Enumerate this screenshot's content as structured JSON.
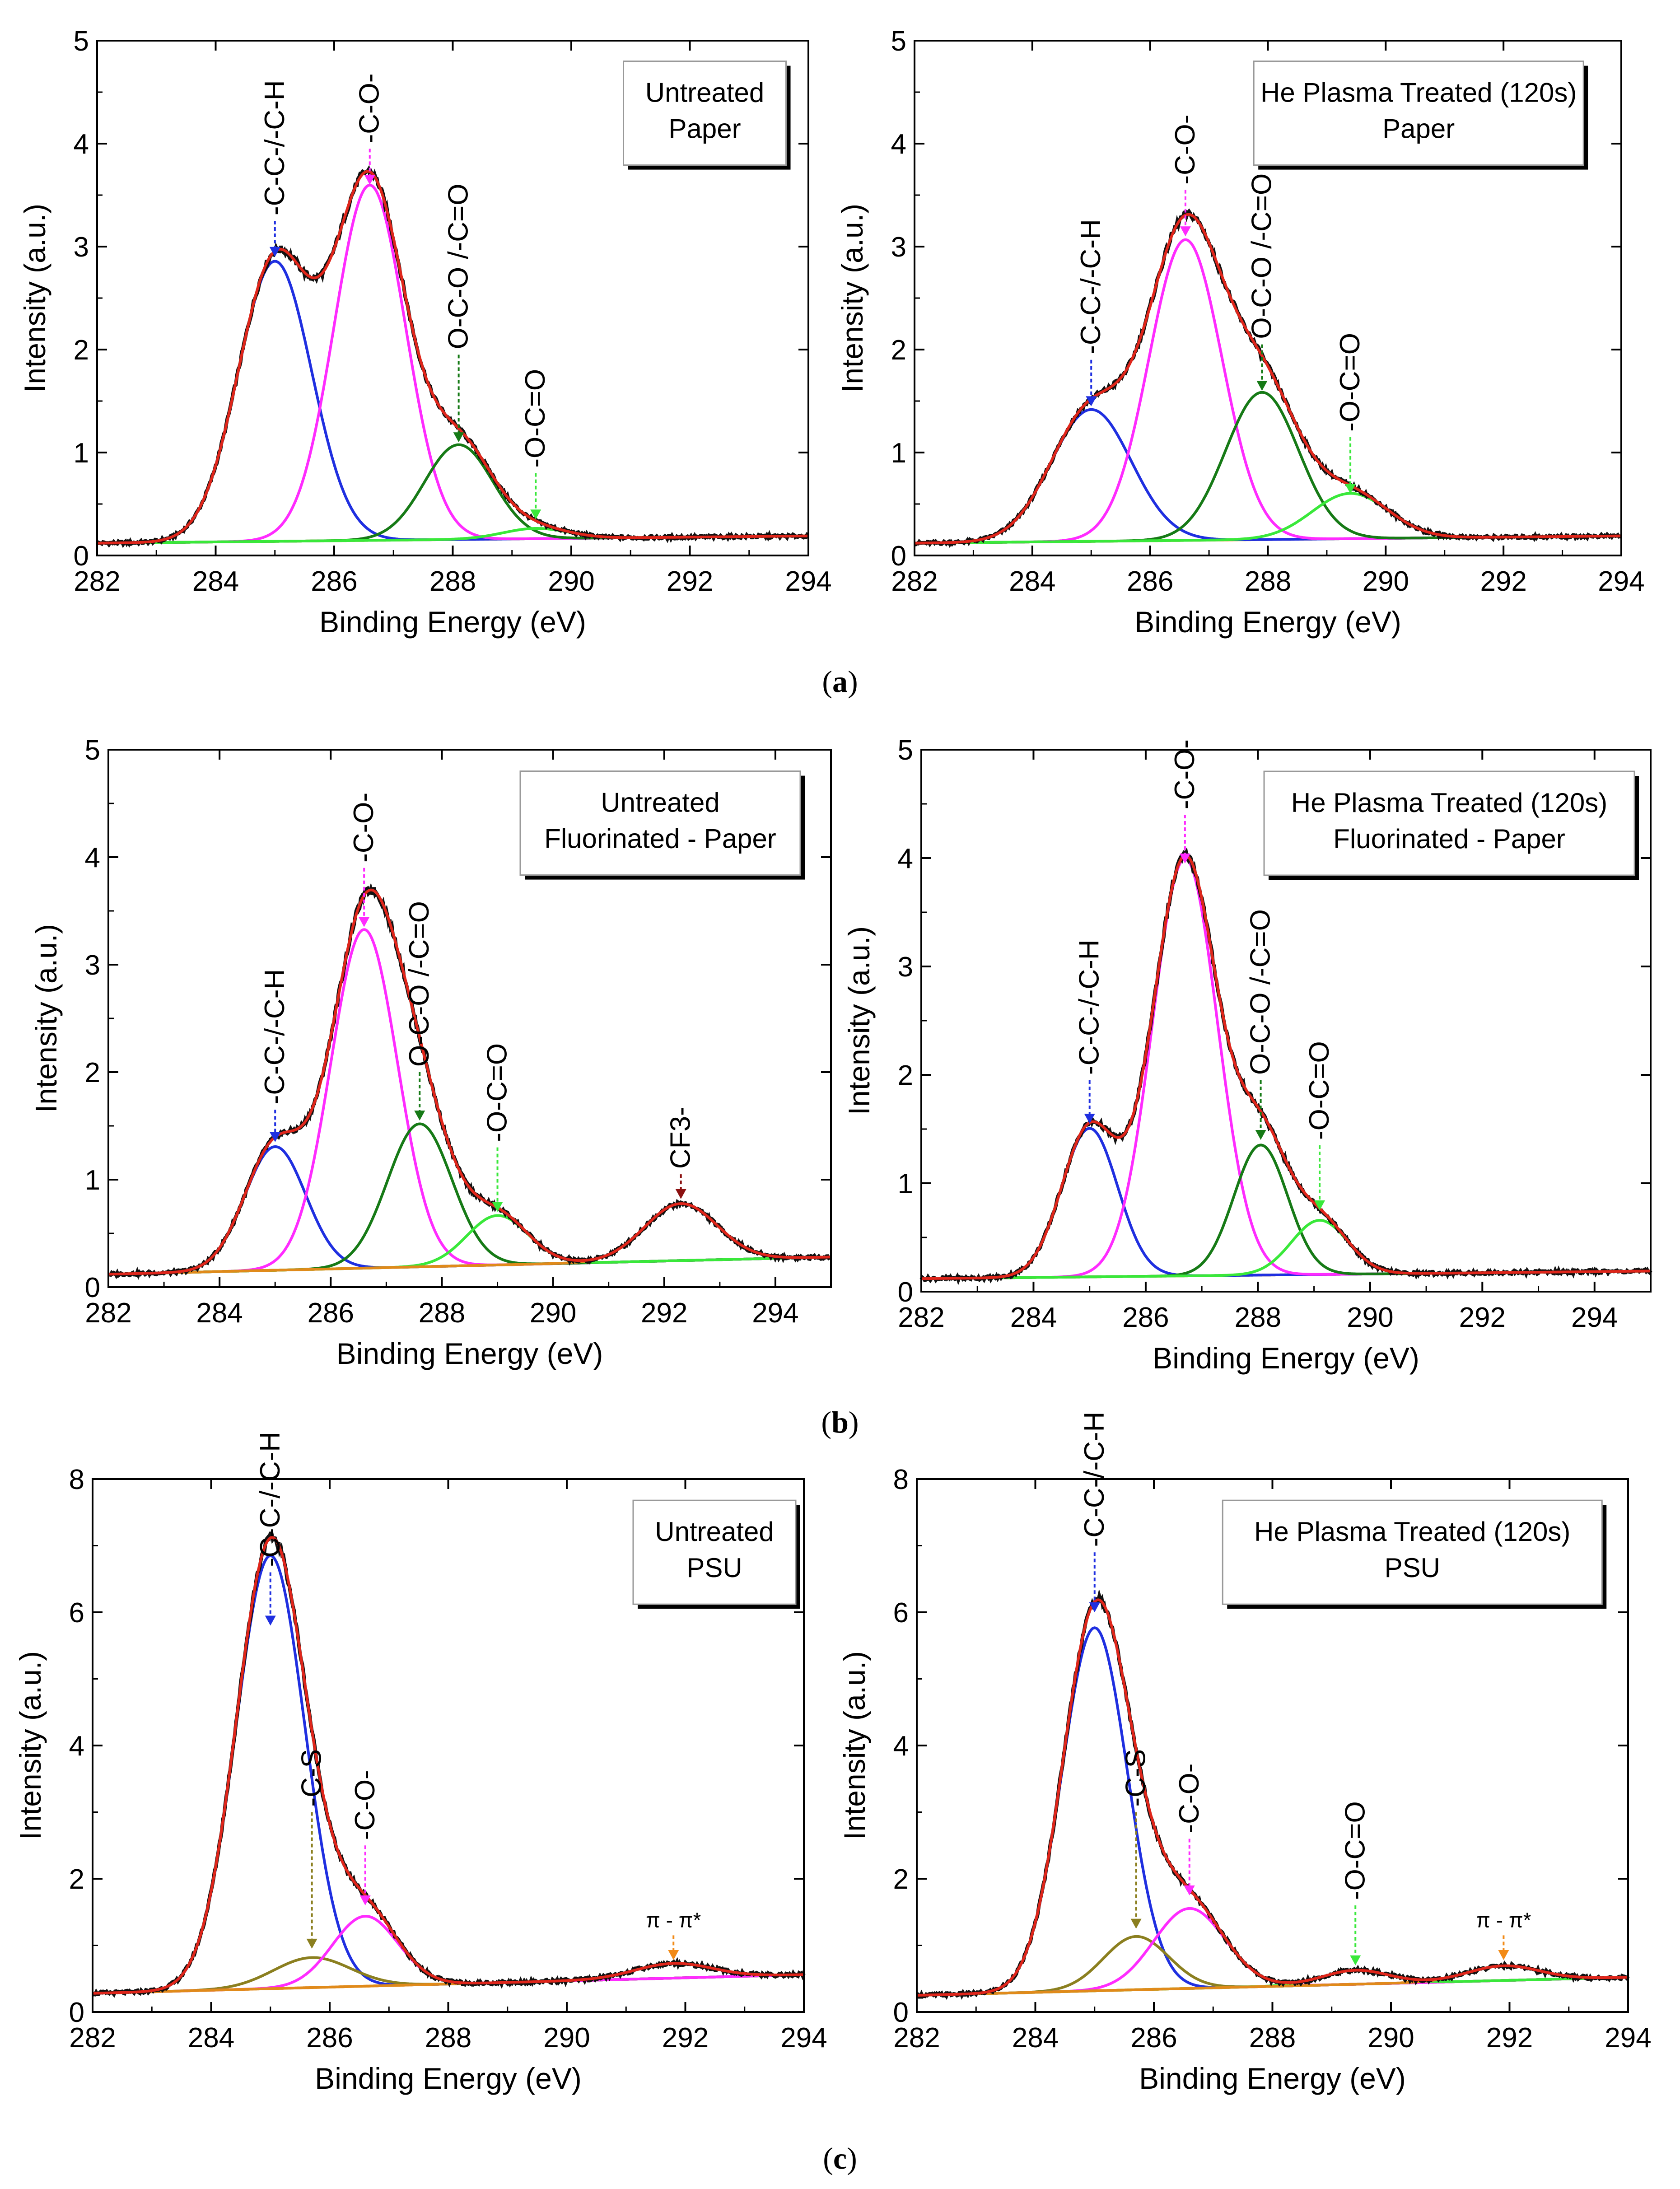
{
  "colors": {
    "data": "#111111",
    "envelope": "#e0261b",
    "cc": "#1f2fe0",
    "co": "#ff2bff",
    "oco": "#167a16",
    "occ": "#39e83a",
    "bg": "#e08a1a",
    "cs": "#8b7f1f",
    "cf3": "#8b1010",
    "pi": "#f28a16"
  },
  "captions": [
    {
      "open": "(",
      "letter": "a",
      "close": ")"
    },
    {
      "open": "(",
      "letter": "b",
      "close": ")"
    },
    {
      "open": "(",
      "letter": "c",
      "close": ")"
    }
  ],
  "chart_data": [
    {
      "type": "line",
      "id": "a-left",
      "title": "",
      "legend": [
        "Untreated",
        "Paper"
      ],
      "xlabel": "Binding Energy (eV)",
      "ylabel": "Intensity (a.u.)",
      "xlim": [
        282,
        294
      ],
      "ylim": [
        0,
        5
      ],
      "xticks": [
        "282",
        "284",
        "286",
        "288",
        "290",
        "292",
        "294"
      ],
      "yticks": [
        "0",
        "1",
        "2",
        "3",
        "4",
        "5"
      ],
      "baseline": [
        0.12,
        0.19
      ],
      "peaks": [
        {
          "name": "-C-C-/-C-H",
          "center": 285.0,
          "height": 2.72,
          "sigma": 0.62,
          "color": "cc"
        },
        {
          "name": "-C-O-",
          "center": 286.6,
          "height": 3.45,
          "sigma": 0.6,
          "color": "co"
        },
        {
          "name": "O-C-O /-C=O",
          "center": 288.1,
          "height": 0.92,
          "sigma": 0.58,
          "color": "oco"
        },
        {
          "name": "-O-C=O",
          "center": 289.4,
          "height": 0.1,
          "sigma": 0.55,
          "color": "occ"
        }
      ],
      "labels": [
        {
          "text": "-C-C-/-C-H",
          "peak": 0,
          "tip": 2.9,
          "anchor": 3.25
        },
        {
          "text": "-C-O-",
          "peak": 1,
          "tip": 3.6,
          "anchor": 3.95
        },
        {
          "text": "O-C-O /-C=O",
          "peak": 2,
          "tip": 1.1,
          "anchor": 1.95
        },
        {
          "text": "-O-C=O",
          "peak": 3,
          "tip": 0.35,
          "anchor": 0.8
        }
      ]
    },
    {
      "type": "line",
      "id": "a-right",
      "title": "",
      "legend": [
        "He Plasma Treated (120s)",
        "Paper"
      ],
      "xlabel": "Binding Energy (eV)",
      "ylabel": "Intensity (a.u.)",
      "xlim": [
        282,
        294
      ],
      "ylim": [
        0,
        5
      ],
      "xticks": [
        "282",
        "284",
        "286",
        "288",
        "290",
        "292",
        "294"
      ],
      "yticks": [
        "0",
        "1",
        "2",
        "3",
        "4",
        "5"
      ],
      "baseline": [
        0.12,
        0.19
      ],
      "peaks": [
        {
          "name": "-C-C-/-C-H",
          "center": 285.0,
          "height": 1.28,
          "sigma": 0.68,
          "color": "cc"
        },
        {
          "name": "-C-O-",
          "center": 286.6,
          "height": 2.92,
          "sigma": 0.62,
          "color": "co"
        },
        {
          "name": "O-C-O /-C=O",
          "center": 287.9,
          "height": 1.43,
          "sigma": 0.62,
          "color": "oco"
        },
        {
          "name": "-O-C=O",
          "center": 289.4,
          "height": 0.44,
          "sigma": 0.65,
          "color": "occ"
        }
      ],
      "labels": [
        {
          "text": "-C-C-/-C-H",
          "peak": 0,
          "tip": 1.45,
          "anchor": 1.9
        },
        {
          "text": "-C-O-",
          "peak": 1,
          "tip": 3.1,
          "anchor": 3.55
        },
        {
          "text": "O-C-O /-C=O",
          "peak": 2,
          "tip": 1.6,
          "anchor": 2.05
        },
        {
          "text": "-O-C=O",
          "peak": 3,
          "tip": 0.6,
          "anchor": 1.15
        }
      ]
    },
    {
      "type": "line",
      "id": "b-left",
      "title": "",
      "legend": [
        "Untreated",
        "Fluorinated - Paper"
      ],
      "xlabel": "Binding Energy (eV)",
      "ylabel": "Intensity (a.u.)",
      "xlim": [
        282,
        295
      ],
      "ylim": [
        0,
        5
      ],
      "xticks": [
        "282",
        "284",
        "286",
        "288",
        "290",
        "292",
        "294"
      ],
      "yticks": [
        "0",
        "1",
        "2",
        "3",
        "4",
        "5"
      ],
      "baseline": [
        0.12,
        0.28
      ],
      "peaks": [
        {
          "name": "-C-C-/-C-H",
          "center": 285.0,
          "height": 1.15,
          "sigma": 0.55,
          "color": "cc"
        },
        {
          "name": "-C-O-",
          "center": 286.6,
          "height": 3.15,
          "sigma": 0.6,
          "color": "co"
        },
        {
          "name": "O-C-O /-C=O",
          "center": 287.6,
          "height": 1.33,
          "sigma": 0.58,
          "color": "oco"
        },
        {
          "name": "-O-C=O",
          "center": 289.0,
          "height": 0.46,
          "sigma": 0.55,
          "color": "occ"
        },
        {
          "name": "CF3-",
          "center": 292.3,
          "height": 0.53,
          "sigma": 0.65,
          "color": "bg"
        }
      ],
      "labels": [
        {
          "text": "-C-C-/-C-H",
          "peak": 0,
          "tip": 1.35,
          "anchor": 1.65
        },
        {
          "text": "-C-O-",
          "peak": 1,
          "tip": 3.35,
          "anchor": 3.9
        },
        {
          "text": "O-C-O /-C=O",
          "peak": 2,
          "tip": 1.55,
          "anchor": 2.0
        },
        {
          "text": "-O-C=O",
          "peak": 3,
          "tip": 0.7,
          "anchor": 1.3
        },
        {
          "text": "CF3-",
          "peak": 4,
          "tip": 0.82,
          "anchor": 1.05
        }
      ]
    },
    {
      "type": "line",
      "id": "b-right",
      "title": "",
      "legend": [
        "He Plasma Treated (120s)",
        "Fluorinated - Paper"
      ],
      "xlabel": "Binding Energy (eV)",
      "ylabel": "Intensity (a.u.)",
      "xlim": [
        282,
        295
      ],
      "ylim": [
        0,
        5
      ],
      "xticks": [
        "282",
        "284",
        "286",
        "288",
        "290",
        "292",
        "294"
      ],
      "yticks": [
        "0",
        "1",
        "2",
        "3",
        "4",
        "5"
      ],
      "baseline": [
        0.12,
        0.19
      ],
      "peaks": [
        {
          "name": "-C-C-/-C-H",
          "center": 285.0,
          "height": 1.37,
          "sigma": 0.5,
          "color": "cc"
        },
        {
          "name": "-C-O-",
          "center": 286.7,
          "height": 3.85,
          "sigma": 0.58,
          "color": "co"
        },
        {
          "name": "O-C-O /-C=O",
          "center": 288.05,
          "height": 1.2,
          "sigma": 0.48,
          "color": "oco"
        },
        {
          "name": "-O-C=O",
          "center": 289.1,
          "height": 0.5,
          "sigma": 0.5,
          "color": "occ"
        }
      ],
      "labels": [
        {
          "text": "-C-C-/-C-H",
          "peak": 0,
          "tip": 1.55,
          "anchor": 1.95
        },
        {
          "text": "-C-O-",
          "peak": 1,
          "tip": 3.95,
          "anchor": 4.4
        },
        {
          "text": "O-C-O /-C=O",
          "peak": 2,
          "tip": 1.4,
          "anchor": 1.95
        },
        {
          "text": "-O-C=O",
          "peak": 3,
          "tip": 0.75,
          "anchor": 1.35
        }
      ]
    },
    {
      "type": "line",
      "id": "c-left",
      "title": "",
      "legend": [
        "Untreated",
        "PSU"
      ],
      "xlabel": "Binding Energy (eV)",
      "ylabel": "Intensity (a.u.)",
      "xlim": [
        282,
        294
      ],
      "ylim": [
        0,
        8
      ],
      "xticks": [
        "282",
        "284",
        "286",
        "288",
        "290",
        "292",
        "294"
      ],
      "yticks": [
        "0",
        "2",
        "4",
        "6",
        "8"
      ],
      "baseline": [
        0.28,
        0.56
      ],
      "peaks": [
        {
          "name": "-C-C-/-C-H",
          "center": 285.0,
          "height": 6.5,
          "sigma": 0.58,
          "color": "cc"
        },
        {
          "name": "-C-S",
          "center": 285.7,
          "height": 0.45,
          "sigma": 0.65,
          "color": "cs"
        },
        {
          "name": "-C-O-",
          "center": 286.6,
          "height": 1.05,
          "sigma": 0.55,
          "color": "co"
        },
        {
          "name": "π - π*",
          "center": 291.8,
          "height": 0.22,
          "sigma": 0.65,
          "color": "bg"
        }
      ],
      "labels": [
        {
          "text": "-C-C-/-C-H",
          "peak": 0,
          "tip": 5.8,
          "anchor": 6.6
        },
        {
          "text": "-C-S",
          "peak": 1,
          "tip": 0.95,
          "anchor": 3.0
        },
        {
          "text": "-C-O-",
          "peak": 2,
          "tip": 1.6,
          "anchor": 2.5
        },
        {
          "text": "π - π*",
          "peak": 3,
          "tip": 0.78,
          "anchor": 1.15
        }
      ]
    },
    {
      "type": "line",
      "id": "c-right",
      "title": "",
      "legend": [
        "He Plasma Treated (120s)",
        "PSU"
      ],
      "xlabel": "Binding Energy (eV)",
      "ylabel": "Intensity (a.u.)",
      "xlim": [
        282,
        294
      ],
      "ylim": [
        0,
        8
      ],
      "xticks": [
        "282",
        "284",
        "286",
        "288",
        "290",
        "292",
        "294"
      ],
      "yticks": [
        "0",
        "2",
        "4",
        "6",
        "8"
      ],
      "baseline": [
        0.25,
        0.52
      ],
      "peaks": [
        {
          "name": "-C-C-/-C-H",
          "center": 285.0,
          "height": 5.45,
          "sigma": 0.55,
          "color": "cc"
        },
        {
          "name": "-C-S",
          "center": 285.7,
          "height": 0.8,
          "sigma": 0.55,
          "color": "cs"
        },
        {
          "name": "-C-O-",
          "center": 286.6,
          "height": 1.2,
          "sigma": 0.6,
          "color": "co"
        },
        {
          "name": "-O-C=O",
          "center": 289.4,
          "height": 0.21,
          "sigma": 0.55,
          "color": "occ"
        },
        {
          "name": "π - π*",
          "center": 291.9,
          "height": 0.22,
          "sigma": 0.6,
          "color": "bg"
        }
      ],
      "labels": [
        {
          "text": "-C-C-/-C-H",
          "peak": 0,
          "tip": 6.0,
          "anchor": 6.9
        },
        {
          "text": "-C-S",
          "peak": 1,
          "tip": 1.25,
          "anchor": 3.0
        },
        {
          "text": "-C-O-",
          "peak": 2,
          "tip": 1.75,
          "anchor": 2.6
        },
        {
          "text": "-O-C=O",
          "peak": 3,
          "tip": 0.7,
          "anchor": 1.6
        },
        {
          "text": "π - π*",
          "peak": 4,
          "tip": 0.78,
          "anchor": 1.15
        }
      ]
    }
  ]
}
